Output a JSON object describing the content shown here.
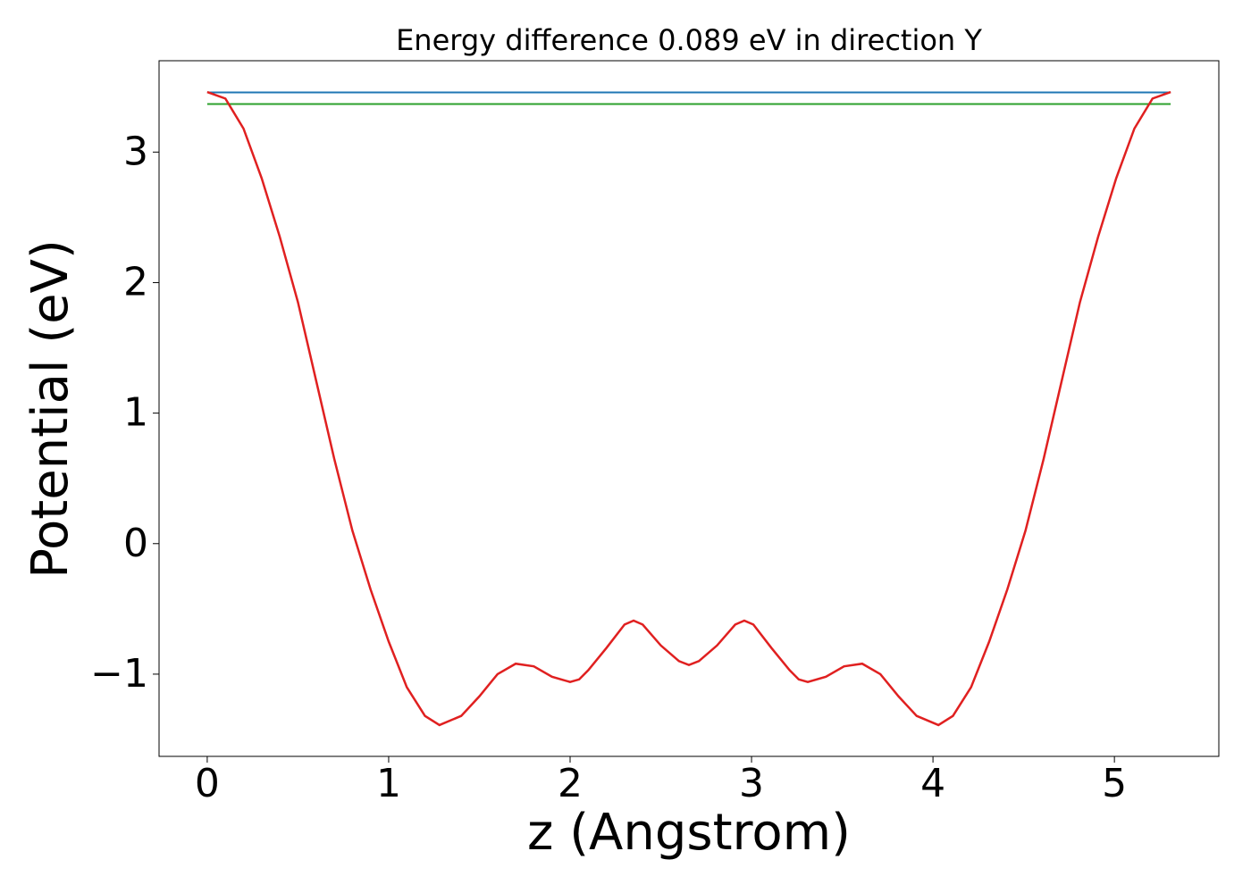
{
  "chart_data": {
    "type": "line",
    "title": "Energy difference 0.089 eV in direction Y",
    "xlabel": "z (Angstrom)",
    "ylabel": "Potential (eV)",
    "xlim": [
      -0.2655,
      5.5755
    ],
    "ylim": [
      -1.63,
      3.7
    ],
    "xticks": [
      0,
      1,
      2,
      3,
      4,
      5
    ],
    "yticks": [
      {
        "value": -1,
        "label": "−1"
      },
      0,
      1,
      2,
      3
    ],
    "grid": false,
    "series": [
      {
        "color": "#1f77b4",
        "x": [
          0,
          5.31
        ],
        "values": [
          3.457,
          3.457
        ]
      },
      {
        "color": "#2ca02c",
        "x": [
          0,
          5.31
        ],
        "values": [
          3.368,
          3.368
        ]
      },
      {
        "color": "#e02020",
        "x": [
          0,
          0.1,
          0.2,
          0.3,
          0.4,
          0.5,
          0.6,
          0.7,
          0.8,
          0.9,
          1.0,
          1.1,
          1.2,
          1.28,
          1.4,
          1.5,
          1.6,
          1.7,
          1.8,
          1.9,
          2.0,
          2.05,
          2.1,
          2.2,
          2.3,
          2.35,
          2.4,
          2.5,
          2.6,
          2.655,
          2.71,
          2.81,
          2.91,
          2.96,
          3.01,
          3.11,
          3.21,
          3.26,
          3.31,
          3.41,
          3.51,
          3.61,
          3.71,
          3.81,
          3.91,
          4.03,
          4.11,
          4.21,
          4.31,
          4.41,
          4.51,
          4.61,
          4.71,
          4.81,
          4.91,
          5.01,
          5.11,
          5.21,
          5.31
        ],
        "values": [
          3.46,
          3.41,
          3.18,
          2.8,
          2.35,
          1.85,
          1.25,
          0.65,
          0.1,
          -0.35,
          -0.75,
          -1.1,
          -1.32,
          -1.39,
          -1.32,
          -1.17,
          -1.0,
          -0.92,
          -0.94,
          -1.02,
          -1.06,
          -1.04,
          -0.97,
          -0.8,
          -0.62,
          -0.59,
          -0.62,
          -0.78,
          -0.9,
          -0.93,
          -0.9,
          -0.78,
          -0.62,
          -0.59,
          -0.62,
          -0.8,
          -0.97,
          -1.04,
          -1.06,
          -1.02,
          -0.94,
          -0.92,
          -1.0,
          -1.17,
          -1.32,
          -1.39,
          -1.32,
          -1.1,
          -0.75,
          -0.35,
          0.1,
          0.65,
          1.25,
          1.85,
          2.35,
          2.8,
          3.18,
          3.41,
          3.46
        ]
      }
    ]
  }
}
